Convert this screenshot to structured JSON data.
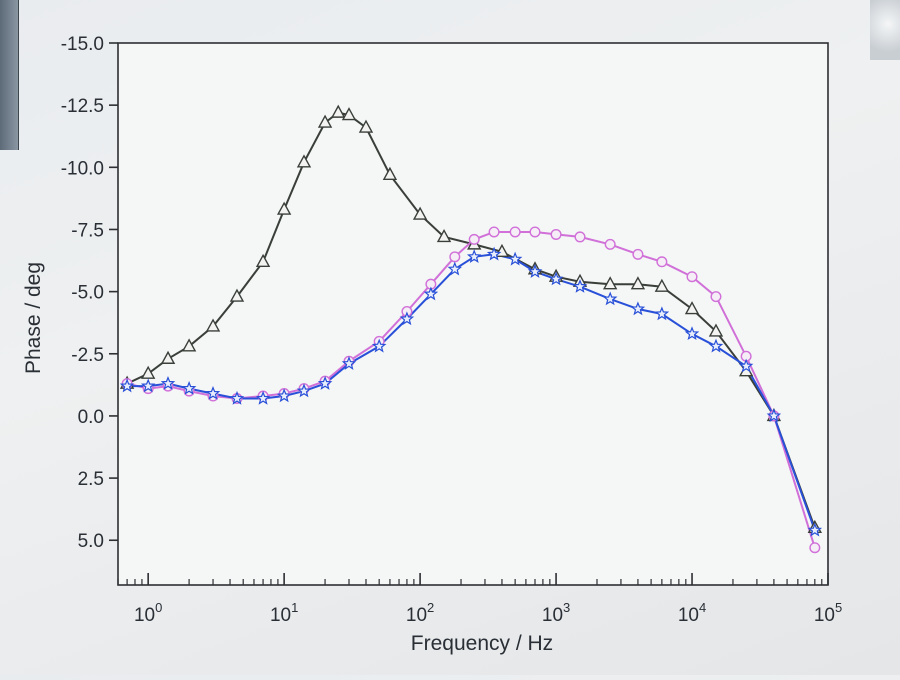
{
  "chart_data": {
    "type": "line",
    "xlabel": "Frequency / Hz",
    "ylabel": "Phase / deg",
    "xscale": "log",
    "xlim": [
      0.6,
      100000
    ],
    "ylim": [
      -15.0,
      6.8
    ],
    "y_axis_inverted": true,
    "x_ticks": [
      {
        "value": 1,
        "base": "10",
        "exp": "0"
      },
      {
        "value": 10,
        "base": "10",
        "exp": "1"
      },
      {
        "value": 100,
        "base": "10",
        "exp": "2"
      },
      {
        "value": 1000,
        "base": "10",
        "exp": "3"
      },
      {
        "value": 10000,
        "base": "10",
        "exp": "4"
      },
      {
        "value": 100000,
        "base": "10",
        "exp": "5"
      }
    ],
    "y_ticks": [
      {
        "value": -15.0,
        "label": "-15.0"
      },
      {
        "value": -12.5,
        "label": "-12.5"
      },
      {
        "value": -10.0,
        "label": "-10.0"
      },
      {
        "value": -7.5,
        "label": "-7.5"
      },
      {
        "value": -5.0,
        "label": "-5.0"
      },
      {
        "value": -2.5,
        "label": "-2.5"
      },
      {
        "value": 0.0,
        "label": "0.0"
      },
      {
        "value": 2.5,
        "label": "2.5"
      },
      {
        "value": 5.0,
        "label": "5.0"
      }
    ],
    "grid": false,
    "legend": "none",
    "series": [
      {
        "color": "#3a3f3a",
        "marker": "triangle",
        "x": [
          0.7,
          1.0,
          1.4,
          2.0,
          3.0,
          4.5,
          7.0,
          10,
          14,
          20,
          25,
          30,
          40,
          60,
          100,
          150,
          250,
          400,
          700,
          1000,
          1500,
          2500,
          4000,
          6000,
          10000,
          15000,
          25000,
          40000,
          80000
        ],
        "y": [
          -1.3,
          -1.7,
          -2.3,
          -2.8,
          -3.6,
          -4.8,
          -6.2,
          -8.3,
          -10.2,
          -11.8,
          -12.2,
          -12.1,
          -11.6,
          -9.7,
          -8.1,
          -7.2,
          -6.9,
          -6.6,
          -5.9,
          -5.6,
          -5.4,
          -5.3,
          -5.3,
          -5.2,
          -4.3,
          -3.4,
          -1.8,
          0.0,
          4.5
        ]
      },
      {
        "color": "#d070d8",
        "marker": "circle",
        "x": [
          0.7,
          1.0,
          1.4,
          2.0,
          3.0,
          4.5,
          7.0,
          10,
          14,
          20,
          30,
          50,
          80,
          120,
          180,
          250,
          350,
          500,
          700,
          1000,
          1500,
          2500,
          4000,
          6000,
          10000,
          15000,
          25000,
          40000,
          80000
        ],
        "y": [
          -1.3,
          -1.1,
          -1.2,
          -1.0,
          -0.8,
          -0.7,
          -0.8,
          -0.9,
          -1.1,
          -1.4,
          -2.2,
          -3.0,
          -4.2,
          -5.3,
          -6.4,
          -7.1,
          -7.4,
          -7.4,
          -7.4,
          -7.3,
          -7.2,
          -6.9,
          -6.5,
          -6.2,
          -5.6,
          -4.8,
          -2.4,
          0.0,
          5.3
        ]
      },
      {
        "color": "#2850d8",
        "marker": "star",
        "x": [
          0.7,
          1.0,
          1.4,
          2.0,
          3.0,
          4.5,
          7.0,
          10,
          14,
          20,
          30,
          50,
          80,
          120,
          180,
          250,
          350,
          500,
          700,
          1000,
          1500,
          2500,
          4000,
          6000,
          10000,
          15000,
          25000,
          40000,
          80000
        ],
        "y": [
          -1.2,
          -1.2,
          -1.3,
          -1.1,
          -0.9,
          -0.7,
          -0.7,
          -0.8,
          -1.0,
          -1.3,
          -2.1,
          -2.8,
          -3.9,
          -4.9,
          -5.9,
          -6.4,
          -6.5,
          -6.3,
          -5.8,
          -5.5,
          -5.2,
          -4.7,
          -4.3,
          -4.1,
          -3.3,
          -2.8,
          -2.0,
          0.0,
          4.6
        ]
      }
    ]
  }
}
